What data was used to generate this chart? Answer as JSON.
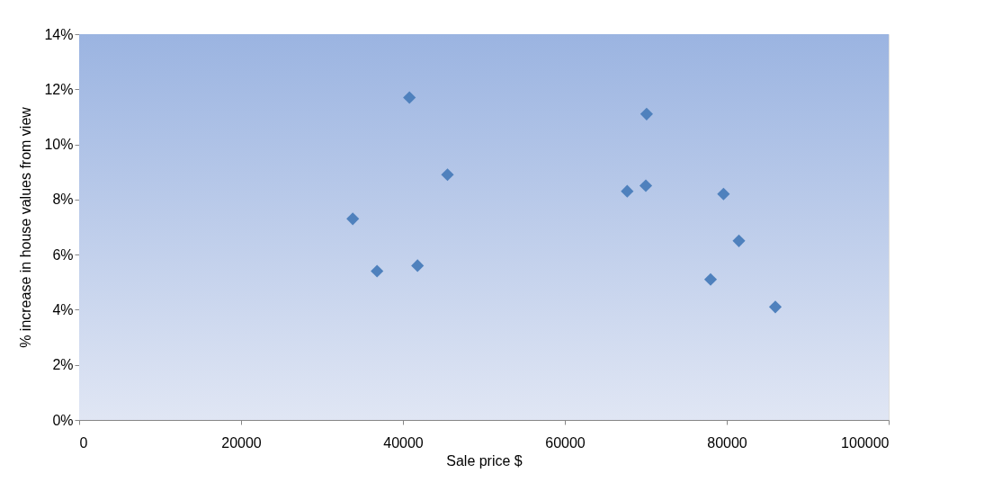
{
  "chart_data": {
    "type": "scatter",
    "xlabel": "Sale price $",
    "ylabel": "% increase in house values from view",
    "x": [
      33800,
      36800,
      40800,
      41800,
      45500,
      67700,
      70000,
      70100,
      79600,
      78000,
      81500,
      86000
    ],
    "series": [
      {
        "color": "#4f81bd",
        "values": [
          7.3,
          5.4,
          11.7,
          5.6,
          8.9,
          8.3,
          8.5,
          11.1,
          8.2,
          5.1,
          6.5,
          4.1
        ]
      }
    ],
    "xlim": [
      0,
      100000
    ],
    "xticks": [
      0,
      20000,
      40000,
      60000,
      80000,
      100000
    ],
    "ylim": [
      0,
      14
    ],
    "yticks": [
      {
        "value": 0,
        "label": "0%"
      },
      {
        "value": 2,
        "label": "2%"
      },
      {
        "value": 4,
        "label": "4%"
      },
      {
        "value": 6,
        "label": "6%"
      },
      {
        "value": 8,
        "label": "8%"
      },
      {
        "value": 10,
        "label": "10%"
      },
      {
        "value": 12,
        "label": "12%"
      },
      {
        "value": 14,
        "label": "14%"
      }
    ],
    "marker": "diamond",
    "grid": false
  }
}
